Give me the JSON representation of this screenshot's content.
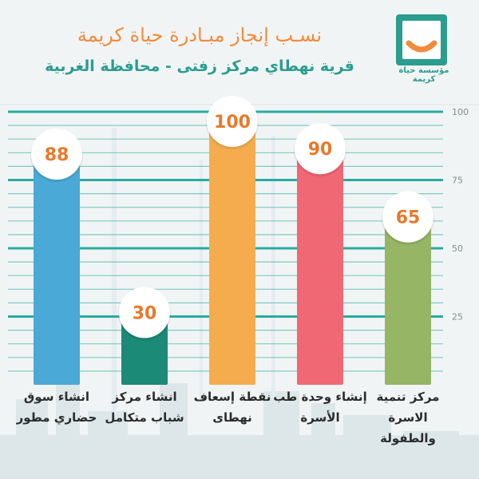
{
  "header": {
    "title": "نسـب إنجاز مبـادرة حياة كريمة",
    "subtitle": "قرية نهطاي مركز زفتى - محافظة الغربية"
  },
  "logo": {
    "text": "مؤسسة حياة كريمة"
  },
  "colors": {
    "title": "#f28b3c",
    "subtitle": "#2a9d8f",
    "gridline": "#1fa89c",
    "value_text": "#e8792c"
  },
  "chart_data": {
    "type": "bar",
    "ylim": [
      0,
      100
    ],
    "yticks": [
      "25",
      "50",
      "75",
      "100"
    ],
    "categories": [
      "انشاء سوق حضاري مطور",
      "انشاء مركز شباب متكامل",
      "نقطة إسعاف نهطاى",
      "إنشاء وحدة طب الأسرة",
      "مركز تنمية الاسرة والطفولة"
    ],
    "values": [
      88,
      30,
      100,
      90,
      65
    ],
    "data_labels": [
      "88",
      "30",
      "100",
      "90",
      "65"
    ],
    "colors": [
      "#4aa9d6",
      "#1b8a76",
      "#f4ac4f",
      "#f06874",
      "#96b565"
    ],
    "grid": true
  }
}
